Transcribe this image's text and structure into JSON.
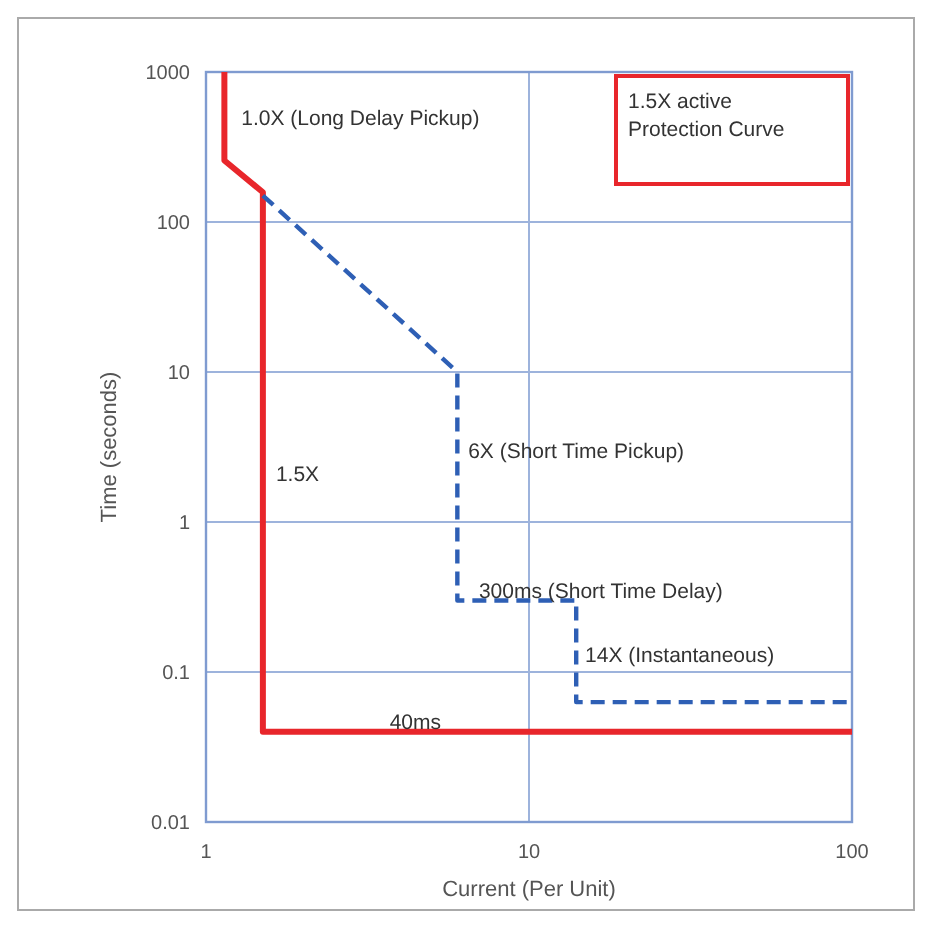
{
  "chart_data": {
    "type": "line",
    "xlabel": "Current (Per Unit)",
    "ylabel": "Time (seconds)",
    "log": "xy",
    "xlim": [
      1,
      100
    ],
    "xticks": [
      1,
      10,
      100
    ],
    "ylim": [
      0.01,
      1000
    ],
    "yticks": [
      0.01,
      0.1,
      1,
      10,
      100,
      1000
    ],
    "grid": true,
    "series": [
      {
        "color": "#e8262b",
        "line_style": "solid",
        "x": [
          1.14,
          1.14,
          1.5,
          1.5,
          100
        ],
        "values": [
          1000,
          257,
          158,
          0.04,
          0.04
        ]
      },
      {
        "color": "#2e5fb5",
        "line_style": "dashed",
        "x": [
          1.5,
          6,
          6,
          14,
          14,
          100
        ],
        "values": [
          150,
          10,
          0.3,
          0.3,
          0.063,
          0.063
        ]
      }
    ],
    "annotations": [
      "1.5X active Protection Curve",
      {
        "text": "1.0X (Long Delay Pickup)",
        "x": 1.25,
        "y": 500
      },
      {
        "text": "1.5X",
        "x": 1.6,
        "y": 2.1
      },
      {
        "text": "6X (Short Time Pickup)",
        "x": 6.3,
        "y": 3
      },
      {
        "text": "300ms (Short Time Delay)",
        "x": 6.8,
        "y": 0.35
      },
      {
        "text": "14X (Instantaneous)",
        "x": 14.5,
        "y": 0.13
      },
      {
        "text": "40ms",
        "x": 3.6,
        "y": 0.047
      }
    ]
  }
}
